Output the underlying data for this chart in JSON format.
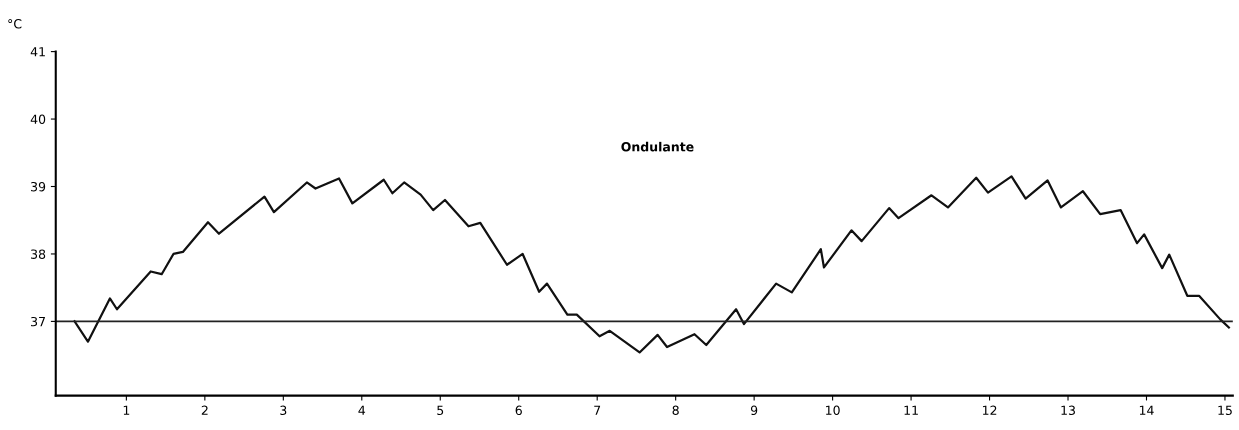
{
  "chart_data": {
    "type": "line",
    "ylabel": "°C",
    "annotations": [
      "Ondulante"
    ],
    "series": [
      {
        "color": "#111111",
        "x": [
          0.34,
          0.51,
          0.79,
          0.88,
          1.31,
          1.45,
          1.6,
          1.72,
          2.04,
          2.18,
          2.76,
          2.88,
          3.3,
          3.41,
          3.71,
          3.88,
          4.28,
          4.39,
          4.54,
          4.75,
          4.91,
          5.06,
          5.36,
          5.51,
          5.85,
          6.05,
          6.26,
          6.36,
          6.62,
          6.74,
          7.03,
          7.16,
          7.54,
          7.77,
          7.89,
          8.24,
          8.39,
          8.77,
          8.87,
          9.28,
          9.48,
          9.85,
          9.89,
          10.24,
          10.37,
          10.72,
          10.84,
          11.26,
          11.47,
          11.83,
          11.98,
          12.28,
          12.46,
          12.74,
          12.91,
          13.19,
          13.41,
          13.67,
          13.88,
          13.97,
          14.2,
          14.29,
          14.52,
          14.67,
          14.94,
          15.05
        ],
        "values": [
          37.0,
          36.7,
          37.34,
          37.18,
          37.74,
          37.7,
          38.0,
          38.03,
          38.47,
          38.3,
          38.85,
          38.62,
          39.06,
          38.97,
          39.12,
          38.75,
          39.1,
          38.9,
          39.06,
          38.88,
          38.65,
          38.8,
          38.41,
          38.46,
          37.84,
          38.0,
          37.44,
          37.56,
          37.1,
          37.1,
          36.78,
          36.86,
          36.54,
          36.8,
          36.62,
          36.81,
          36.65,
          37.18,
          36.96,
          37.56,
          37.43,
          38.07,
          37.8,
          38.35,
          38.19,
          38.68,
          38.53,
          38.87,
          38.69,
          39.13,
          38.91,
          39.15,
          38.82,
          39.09,
          38.69,
          38.93,
          38.59,
          38.65,
          38.16,
          38.29,
          37.79,
          37.99,
          37.38,
          37.38,
          37.03,
          36.91
        ]
      }
    ],
    "xlim": [
      0.1,
      15.1
    ],
    "xticks": [
      1,
      2,
      3,
      4,
      5,
      6,
      7,
      8,
      9,
      10,
      11,
      12,
      13,
      14,
      15
    ],
    "ylim": [
      35.9,
      41
    ],
    "yticks": [
      37,
      38,
      39,
      40,
      41
    ],
    "ref_lines": [
      {
        "axis": "y",
        "value": 37,
        "color": "#222222"
      }
    ],
    "grid": false,
    "marker": "none",
    "line_style": "solid"
  }
}
